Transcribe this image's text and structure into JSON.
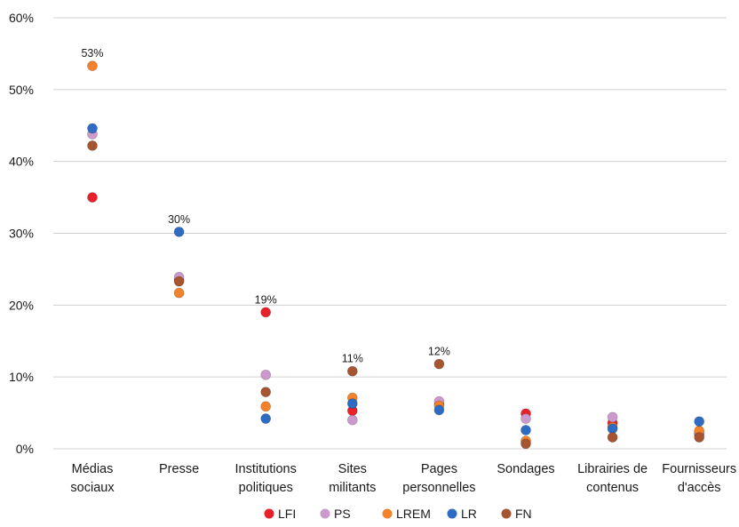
{
  "chart_data": {
    "type": "scatter",
    "categories": [
      [
        "Médias",
        "sociaux"
      ],
      [
        "Presse"
      ],
      [
        "Institutions",
        "politiques"
      ],
      [
        "Sites",
        "militants"
      ],
      [
        "Pages",
        "personnelles"
      ],
      [
        "Sondages"
      ],
      [
        "Librairies de",
        "contenus"
      ],
      [
        "Fournisseurs",
        "d'accès"
      ]
    ],
    "ylim": [
      0,
      60
    ],
    "yticks": [
      0,
      10,
      20,
      30,
      40,
      50,
      60
    ],
    "ytick_labels": [
      "0%",
      "10%",
      "20%",
      "30%",
      "40%",
      "50%",
      "60%"
    ],
    "grid": true,
    "legend_position": "bottom",
    "series": [
      {
        "name": "LFI",
        "color": "#e8202a",
        "values": [
          35,
          23.5,
          19,
          5.3,
          6.2,
          4.9,
          3.6,
          2.0
        ]
      },
      {
        "name": "PS",
        "color": "#cc99cc",
        "values": [
          43.8,
          23.9,
          10.3,
          4.0,
          6.6,
          4.2,
          4.4,
          2.2
        ]
      },
      {
        "name": "LREM",
        "color": "#f4822a",
        "values": [
          53.3,
          21.7,
          5.9,
          7.1,
          6.0,
          1.1,
          3.0,
          2.5
        ]
      },
      {
        "name": "LR",
        "color": "#2e6cc4",
        "values": [
          44.6,
          30.2,
          4.2,
          6.3,
          5.4,
          2.6,
          2.8,
          3.8
        ]
      },
      {
        "name": "FN",
        "color": "#a65530",
        "values": [
          42.2,
          23.3,
          7.9,
          10.8,
          11.8,
          0.7,
          1.6,
          1.6
        ]
      }
    ],
    "annotations": [
      {
        "category_index": 0,
        "value": 53.3,
        "text": "53%"
      },
      {
        "category_index": 1,
        "value": 30.2,
        "text": "30%"
      },
      {
        "category_index": 2,
        "value": 19,
        "text": "19%"
      },
      {
        "category_index": 3,
        "value": 10.8,
        "text": "11%"
      },
      {
        "category_index": 4,
        "value": 11.8,
        "text": "12%"
      }
    ]
  }
}
